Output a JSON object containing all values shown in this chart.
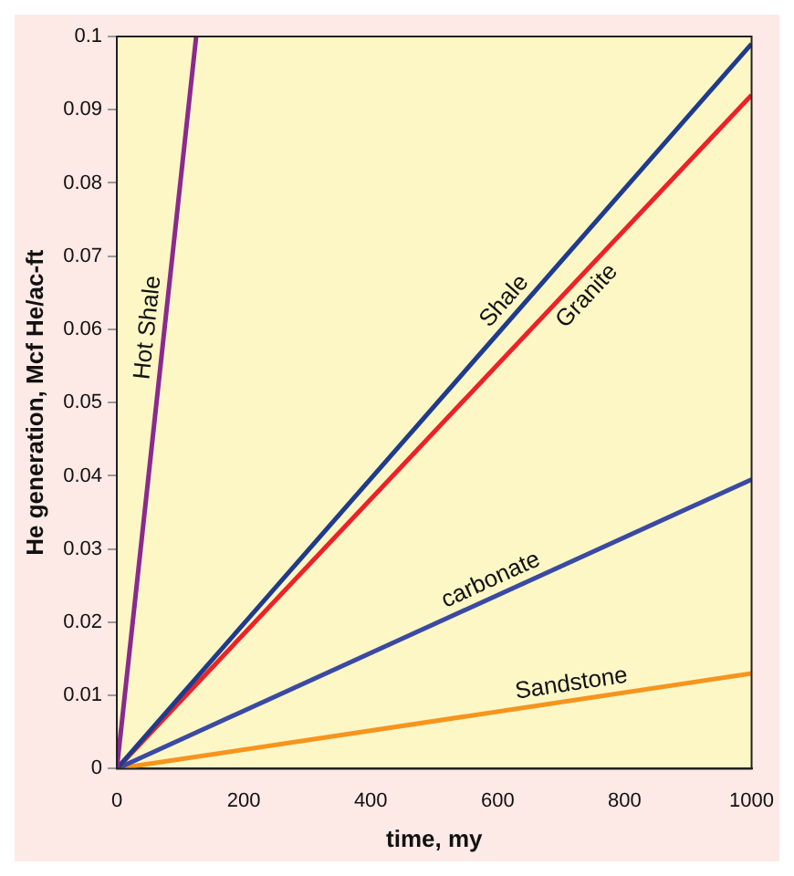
{
  "chart_data": {
    "type": "line",
    "xlabel": "time, my",
    "ylabel": "He generation, Mcf He/ac-ft",
    "xlim": [
      0,
      1000
    ],
    "xticks": [
      0,
      200,
      400,
      600,
      800,
      1000
    ],
    "ylim": [
      0,
      0.1
    ],
    "yticks": [
      0,
      0.01,
      0.02,
      0.03,
      0.04,
      0.05,
      0.06,
      0.07,
      0.08,
      0.09,
      0.1
    ],
    "grid": false,
    "legend": false,
    "marker": "none",
    "line_style": "solid",
    "series": [
      {
        "name": "Hot Shale",
        "color": "#8b2a8e",
        "x": [
          0,
          125
        ],
        "values": [
          0,
          0.1
        ]
      },
      {
        "name": "Shale",
        "color": "#1f3b8c",
        "x": [
          0,
          1000
        ],
        "values": [
          0,
          0.099
        ]
      },
      {
        "name": "Granite",
        "color": "#ec2227",
        "x": [
          0,
          1000
        ],
        "values": [
          0,
          0.092
        ]
      },
      {
        "name": "carbonate",
        "color": "#3a4aa3",
        "x": [
          0,
          1000
        ],
        "values": [
          0,
          0.0395
        ]
      },
      {
        "name": "Sandstone",
        "color": "#f7941d",
        "x": [
          0,
          1000
        ],
        "values": [
          0,
          0.013
        ]
      }
    ]
  }
}
